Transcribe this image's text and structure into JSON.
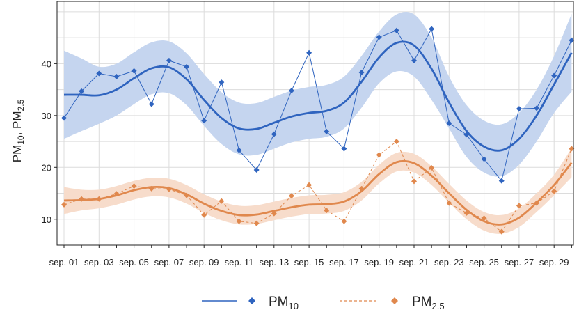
{
  "chart_data": {
    "type": "line",
    "ylabel": {
      "a": "PM",
      "a_sub": "10",
      "sep": ", ",
      "b": "PM",
      "b_sub": "2.5"
    },
    "ylim": [
      5,
      52
    ],
    "yticks": [
      10,
      20,
      30,
      40
    ],
    "grid": true,
    "legend_position": "bottom",
    "x": [
      "sep. 01",
      "sep. 02",
      "sep. 03",
      "sep. 04",
      "sep. 05",
      "sep. 06",
      "sep. 07",
      "sep. 08",
      "sep. 09",
      "sep. 10",
      "sep. 11",
      "sep. 12",
      "sep. 13",
      "sep. 14",
      "sep. 15",
      "sep. 16",
      "sep. 17",
      "sep. 18",
      "sep. 19",
      "sep. 20",
      "sep. 21",
      "sep. 22",
      "sep. 23",
      "sep. 24",
      "sep. 25",
      "sep. 26",
      "sep. 27",
      "sep. 28",
      "sep. 29",
      "sep. 30"
    ],
    "xtick_labels": [
      "sep. 01",
      "sep. 03",
      "sep. 05",
      "sep. 07",
      "sep. 09",
      "sep. 11",
      "sep. 13",
      "sep. 15",
      "sep. 17",
      "sep. 19",
      "sep. 21",
      "sep. 23",
      "sep. 25",
      "sep. 27",
      "sep. 29"
    ],
    "series": [
      {
        "name": "PM",
        "name_sub": "10",
        "color": "#2f64bf",
        "band_color": "#c5d5ef",
        "line_style": "solid",
        "values": [
          29.5,
          34.7,
          38.1,
          37.5,
          38.6,
          32.2,
          40.6,
          39.4,
          29.0,
          36.4,
          23.3,
          19.5,
          26.4,
          34.8,
          42.1,
          26.9,
          23.6,
          38.3,
          45.1,
          46.4,
          40.6,
          46.7,
          28.5,
          26.3,
          21.6,
          17.4,
          31.3,
          31.4,
          37.7,
          44.5
        ],
        "smooth": [
          34.0,
          34.0,
          33.9,
          35.0,
          37.2,
          39.1,
          39.3,
          37.0,
          33.0,
          29.5,
          27.5,
          27.4,
          28.6,
          29.8,
          30.5,
          30.9,
          32.5,
          36.5,
          41.2,
          44.0,
          43.5,
          39.0,
          32.5,
          27.0,
          24.0,
          23.3,
          25.5,
          30.0,
          36.0,
          42.1
        ],
        "band_half": [
          8.5,
          7.0,
          5.5,
          5.0,
          5.0,
          5.0,
          5.0,
          5.0,
          5.0,
          5.0,
          5.0,
          5.0,
          5.0,
          5.0,
          5.0,
          5.0,
          5.0,
          5.0,
          5.0,
          5.5,
          6.0,
          6.0,
          5.0,
          5.0,
          5.0,
          5.0,
          5.0,
          5.0,
          5.5,
          7.5
        ]
      },
      {
        "name": "PM",
        "name_sub": "2.5",
        "color": "#e0884d",
        "band_color": "#f7dccb",
        "line_style": "dashed",
        "values": [
          12.8,
          13.9,
          13.9,
          14.9,
          16.4,
          15.9,
          15.8,
          14.6,
          10.8,
          13.5,
          9.6,
          9.2,
          11.1,
          14.5,
          16.6,
          11.7,
          9.6,
          15.9,
          22.4,
          25.0,
          17.3,
          19.9,
          13.1,
          11.2,
          10.2,
          7.6,
          12.6,
          13.1,
          15.4,
          23.6
        ]
      }
    ],
    "series_pm25_smooth": [
      13.6,
      13.7,
      13.9,
      14.6,
      15.6,
      16.2,
      16.0,
      14.8,
      13.0,
      11.6,
      10.8,
      10.9,
      11.6,
      12.3,
      12.8,
      12.9,
      13.4,
      15.4,
      18.7,
      21.0,
      20.8,
      18.4,
      15.0,
      11.8,
      9.6,
      9.0,
      10.3,
      13.2,
      16.6,
      20.9
    ],
    "series_pm25_band_half": [
      2.6,
      2.0,
      1.8,
      1.8,
      1.8,
      1.8,
      1.8,
      1.8,
      1.8,
      1.8,
      1.8,
      1.8,
      1.8,
      1.8,
      1.8,
      1.8,
      1.8,
      1.8,
      1.8,
      1.8,
      1.8,
      1.8,
      1.8,
      1.8,
      1.8,
      1.8,
      1.8,
      1.8,
      2.0,
      2.8
    ]
  }
}
